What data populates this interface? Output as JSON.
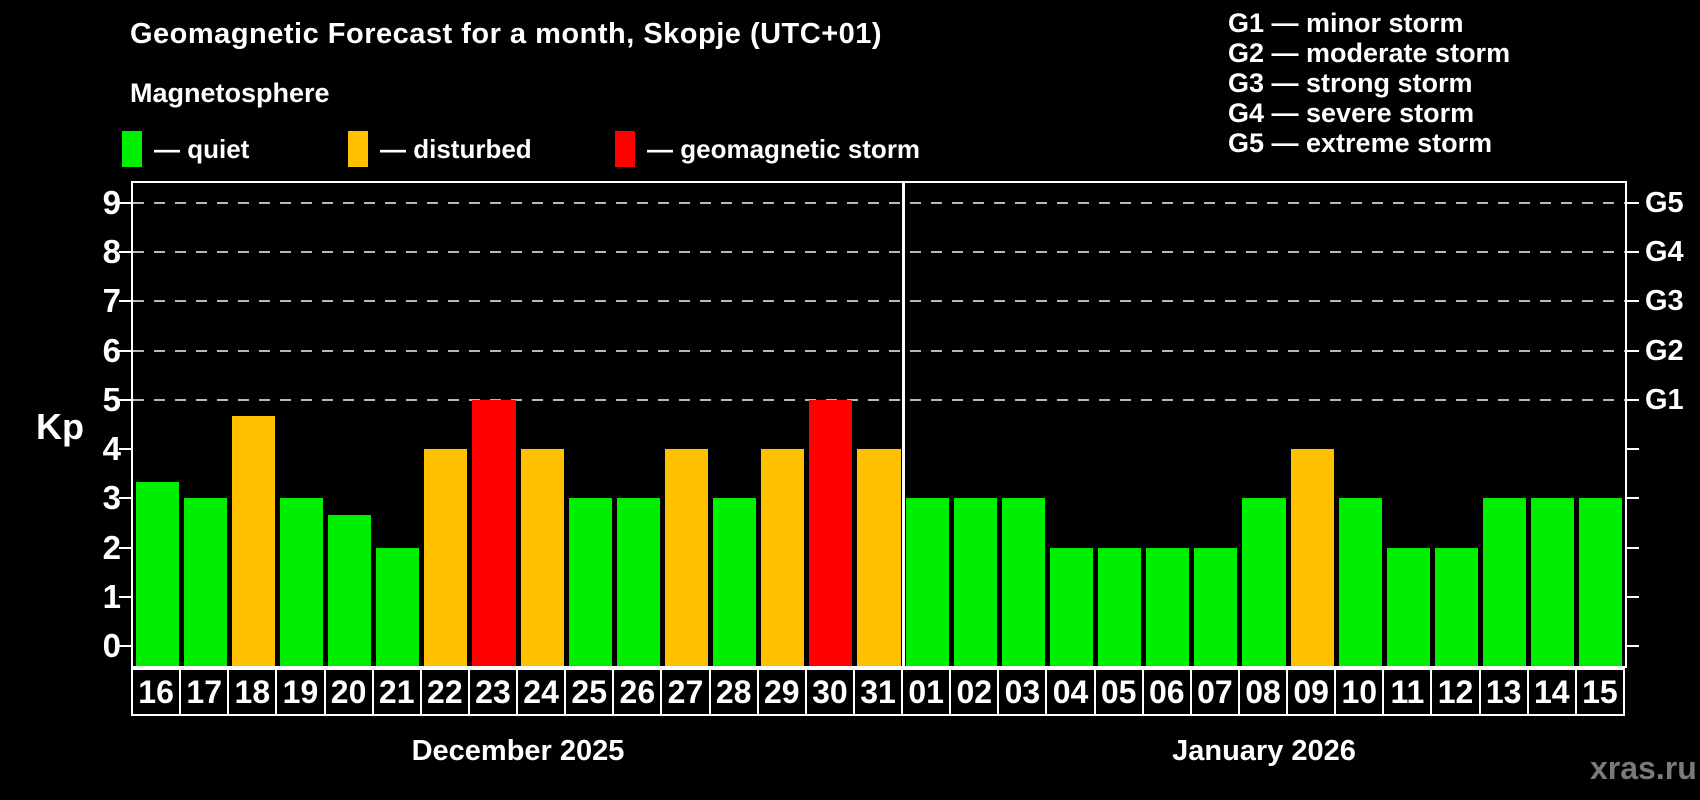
{
  "header": {
    "title": "Geomagnetic Forecast for a month, Skopje (UTC+01)",
    "subtitle": "Magnetosphere"
  },
  "legend": {
    "items": [
      {
        "id": "quiet",
        "label": "— quiet",
        "color": "#00ee00",
        "x": 122
      },
      {
        "id": "disturbed",
        "label": "— disturbed",
        "color": "#ffc000",
        "x": 348
      },
      {
        "id": "storm",
        "label": "— geomagnetic storm",
        "color": "#ff0000",
        "x": 615
      }
    ]
  },
  "g_legend": {
    "items": [
      "G1 — minor storm",
      "G2 — moderate storm",
      "G3 — strong storm",
      "G4 — severe storm",
      "G5 — extreme storm"
    ]
  },
  "watermark": "xras.ru",
  "chart_data": {
    "type": "bar",
    "title": "Geomagnetic Forecast for a month, Skopje (UTC+01)",
    "ylabel": "Kp",
    "ylim": [
      -0.4,
      9.4
    ],
    "yticks": [
      0,
      1,
      2,
      3,
      4,
      5,
      6,
      7,
      8,
      9
    ],
    "grid_levels": [
      5,
      6,
      7,
      8,
      9
    ],
    "grid": "dashed horizontal at G-storm levels only",
    "legend_position": "top",
    "right_axis": [
      {
        "label": "G1",
        "kp": 5
      },
      {
        "label": "G2",
        "kp": 6
      },
      {
        "label": "G3",
        "kp": 7
      },
      {
        "label": "G4",
        "kp": 8
      },
      {
        "label": "G5",
        "kp": 9
      }
    ],
    "status_colors": {
      "quiet": "#00ee00",
      "disturbed": "#ffc000",
      "storm": "#ff0000"
    },
    "months": [
      {
        "label": "December 2025",
        "days": [
          {
            "day": "16",
            "kp": 3.33,
            "status": "quiet"
          },
          {
            "day": "17",
            "kp": 3,
            "status": "quiet"
          },
          {
            "day": "18",
            "kp": 4.67,
            "status": "disturbed"
          },
          {
            "day": "19",
            "kp": 3,
            "status": "quiet"
          },
          {
            "day": "20",
            "kp": 2.67,
            "status": "quiet"
          },
          {
            "day": "21",
            "kp": 2,
            "status": "quiet"
          },
          {
            "day": "22",
            "kp": 4,
            "status": "disturbed"
          },
          {
            "day": "23",
            "kp": 5,
            "status": "storm"
          },
          {
            "day": "24",
            "kp": 4,
            "status": "disturbed"
          },
          {
            "day": "25",
            "kp": 3,
            "status": "quiet"
          },
          {
            "day": "26",
            "kp": 3,
            "status": "quiet"
          },
          {
            "day": "27",
            "kp": 4,
            "status": "disturbed"
          },
          {
            "day": "28",
            "kp": 3,
            "status": "quiet"
          },
          {
            "day": "29",
            "kp": 4,
            "status": "disturbed"
          },
          {
            "day": "30",
            "kp": 5,
            "status": "storm"
          },
          {
            "day": "31",
            "kp": 4,
            "status": "disturbed"
          }
        ]
      },
      {
        "label": "January 2026",
        "days": [
          {
            "day": "01",
            "kp": 3,
            "status": "quiet"
          },
          {
            "day": "02",
            "kp": 3,
            "status": "quiet"
          },
          {
            "day": "03",
            "kp": 3,
            "status": "quiet"
          },
          {
            "day": "04",
            "kp": 2,
            "status": "quiet"
          },
          {
            "day": "05",
            "kp": 2,
            "status": "quiet"
          },
          {
            "day": "06",
            "kp": 2,
            "status": "quiet"
          },
          {
            "day": "07",
            "kp": 2,
            "status": "quiet"
          },
          {
            "day": "08",
            "kp": 3,
            "status": "quiet"
          },
          {
            "day": "09",
            "kp": 4,
            "status": "disturbed"
          },
          {
            "day": "10",
            "kp": 3,
            "status": "quiet"
          },
          {
            "day": "11",
            "kp": 2,
            "status": "quiet"
          },
          {
            "day": "12",
            "kp": 2,
            "status": "quiet"
          },
          {
            "day": "13",
            "kp": 3,
            "status": "quiet"
          },
          {
            "day": "14",
            "kp": 3,
            "status": "quiet"
          },
          {
            "day": "15",
            "kp": 3,
            "status": "quiet"
          }
        ]
      }
    ]
  }
}
